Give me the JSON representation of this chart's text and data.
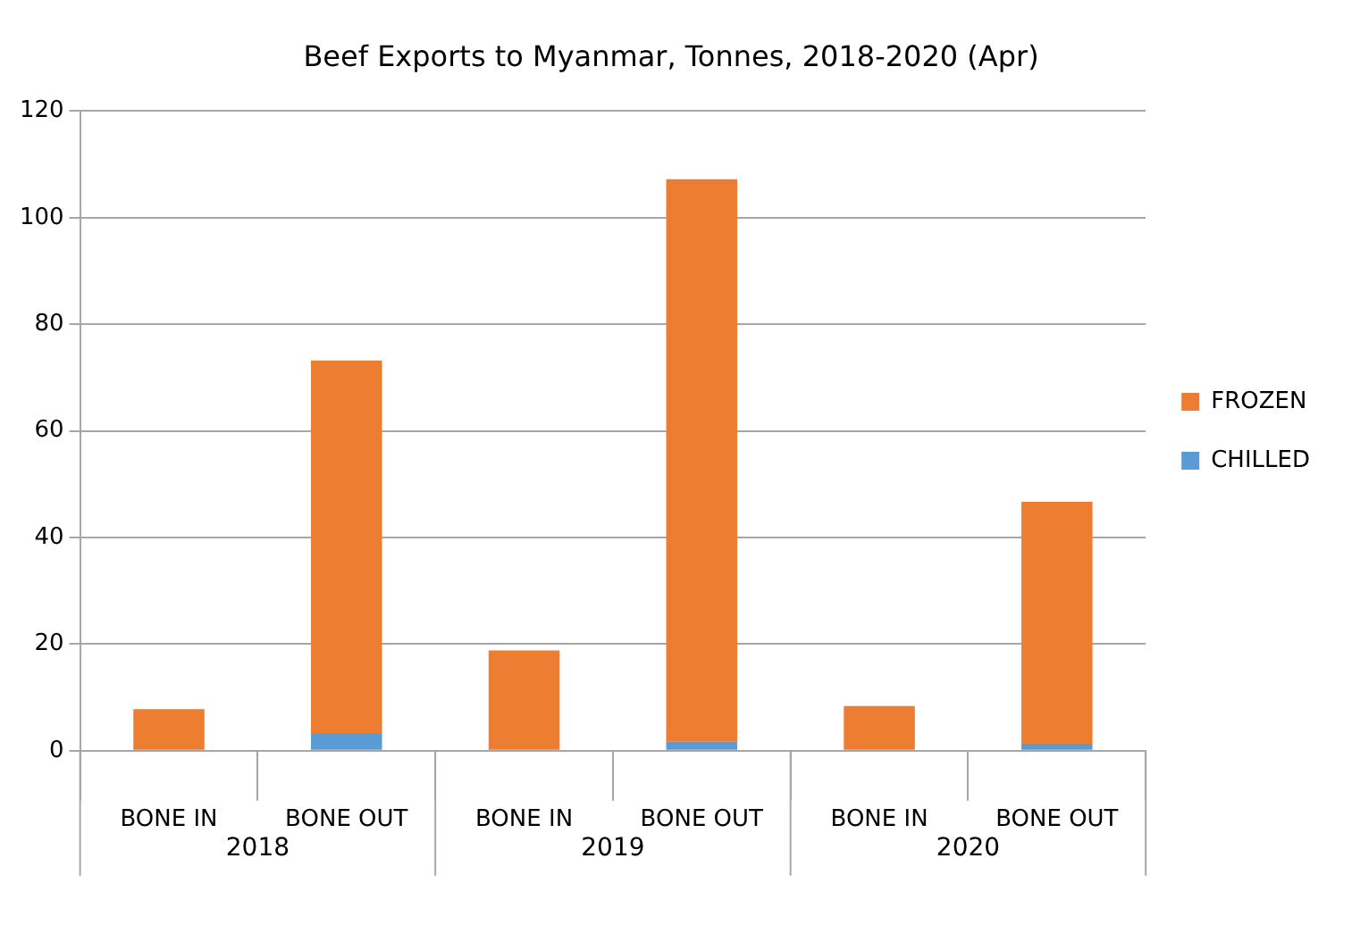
{
  "chart_data": {
    "type": "bar",
    "title": "Beef Exports to Myanmar, Tonnes, 2018-2020 (Apr)",
    "categories": [
      "BONE IN",
      "BONE OUT",
      "BONE IN",
      "BONE OUT",
      "BONE IN",
      "BONE OUT"
    ],
    "stacked": true,
    "series": [
      {
        "name": "CHILLED",
        "color": "#5b9bd5",
        "values": [
          0,
          3.3,
          0,
          1.7,
          0,
          1.3
        ]
      },
      {
        "name": "FROZEN",
        "color": "#ed7d31",
        "values": [
          7.8,
          69.9,
          18.8,
          105.5,
          8.4,
          45.4
        ]
      }
    ],
    "annotations": [
      "2018",
      "2019",
      "2020"
    ],
    "ylim": [
      0,
      120
    ],
    "yticks": [
      0,
      20,
      40,
      60,
      80,
      100,
      120
    ],
    "grid": "y",
    "legend": "right"
  }
}
